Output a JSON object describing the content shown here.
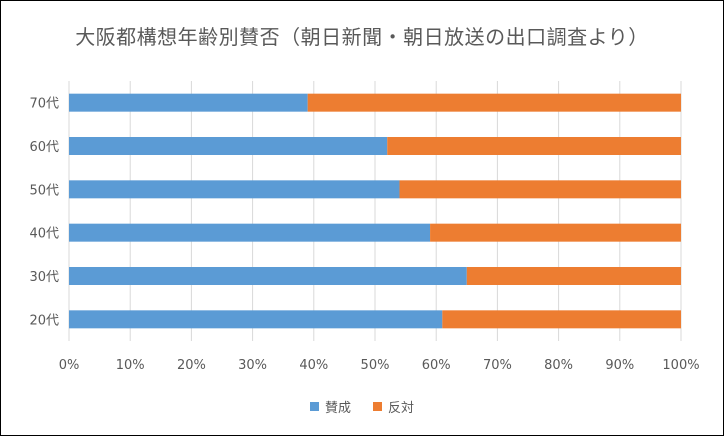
{
  "chart_data": {
    "type": "bar",
    "orientation": "horizontal",
    "stacked": "percent",
    "title": "大阪都構想年齢別賛否（朝日新聞・朝日放送の出口調査より）",
    "categories": [
      "70代",
      "60代",
      "50代",
      "40代",
      "30代",
      "20代"
    ],
    "series": [
      {
        "name": "賛成",
        "color": "#5B9BD5",
        "values": [
          39,
          52,
          54,
          59,
          65,
          61
        ]
      },
      {
        "name": "反対",
        "color": "#ED7D31",
        "values": [
          61,
          48,
          46,
          41,
          35,
          39
        ]
      }
    ],
    "xlim": [
      0,
      100
    ],
    "x_ticks": [
      "0%",
      "10%",
      "20%",
      "30%",
      "40%",
      "50%",
      "60%",
      "70%",
      "80%",
      "90%",
      "100%"
    ],
    "grid": true,
    "legend_position": "bottom"
  }
}
